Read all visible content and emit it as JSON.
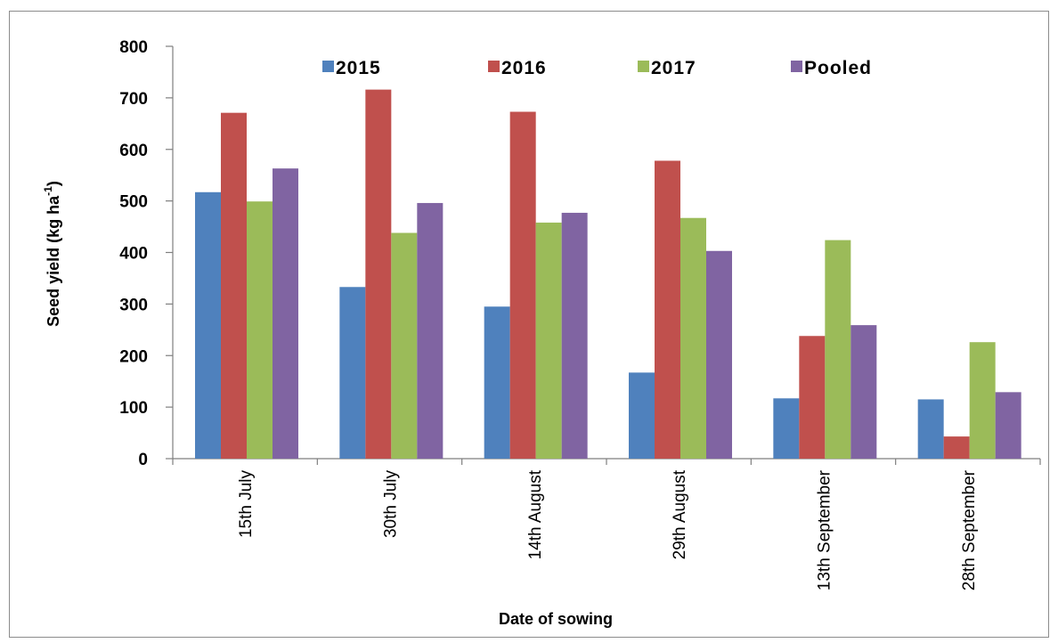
{
  "chart_data": {
    "type": "bar",
    "categories": [
      "15th July",
      "30th July",
      "14th August",
      "29th August",
      "13th September",
      "28th September"
    ],
    "series": [
      {
        "name": "2015",
        "color": "#4f81bd",
        "values": [
          517,
          333,
          295,
          167,
          117,
          115
        ]
      },
      {
        "name": "2016",
        "color": "#c0504d",
        "values": [
          671,
          716,
          673,
          578,
          238,
          43
        ]
      },
      {
        "name": "2017",
        "color": "#9bbb59",
        "values": [
          499,
          438,
          458,
          467,
          424,
          226
        ]
      },
      {
        "name": "Pooled",
        "color": "#8064a2",
        "values": [
          563,
          496,
          477,
          403,
          259,
          129
        ]
      }
    ],
    "xlabel": "Date of sowing",
    "ylabel_main": "Seed yield (kg ha",
    "ylabel_sup": "-1",
    "ylabel_close": ")",
    "ylim": [
      0,
      800
    ],
    "yticks": [
      0,
      100,
      200,
      300,
      400,
      500,
      600,
      700,
      800
    ],
    "grid": false,
    "legend_position": "top"
  }
}
